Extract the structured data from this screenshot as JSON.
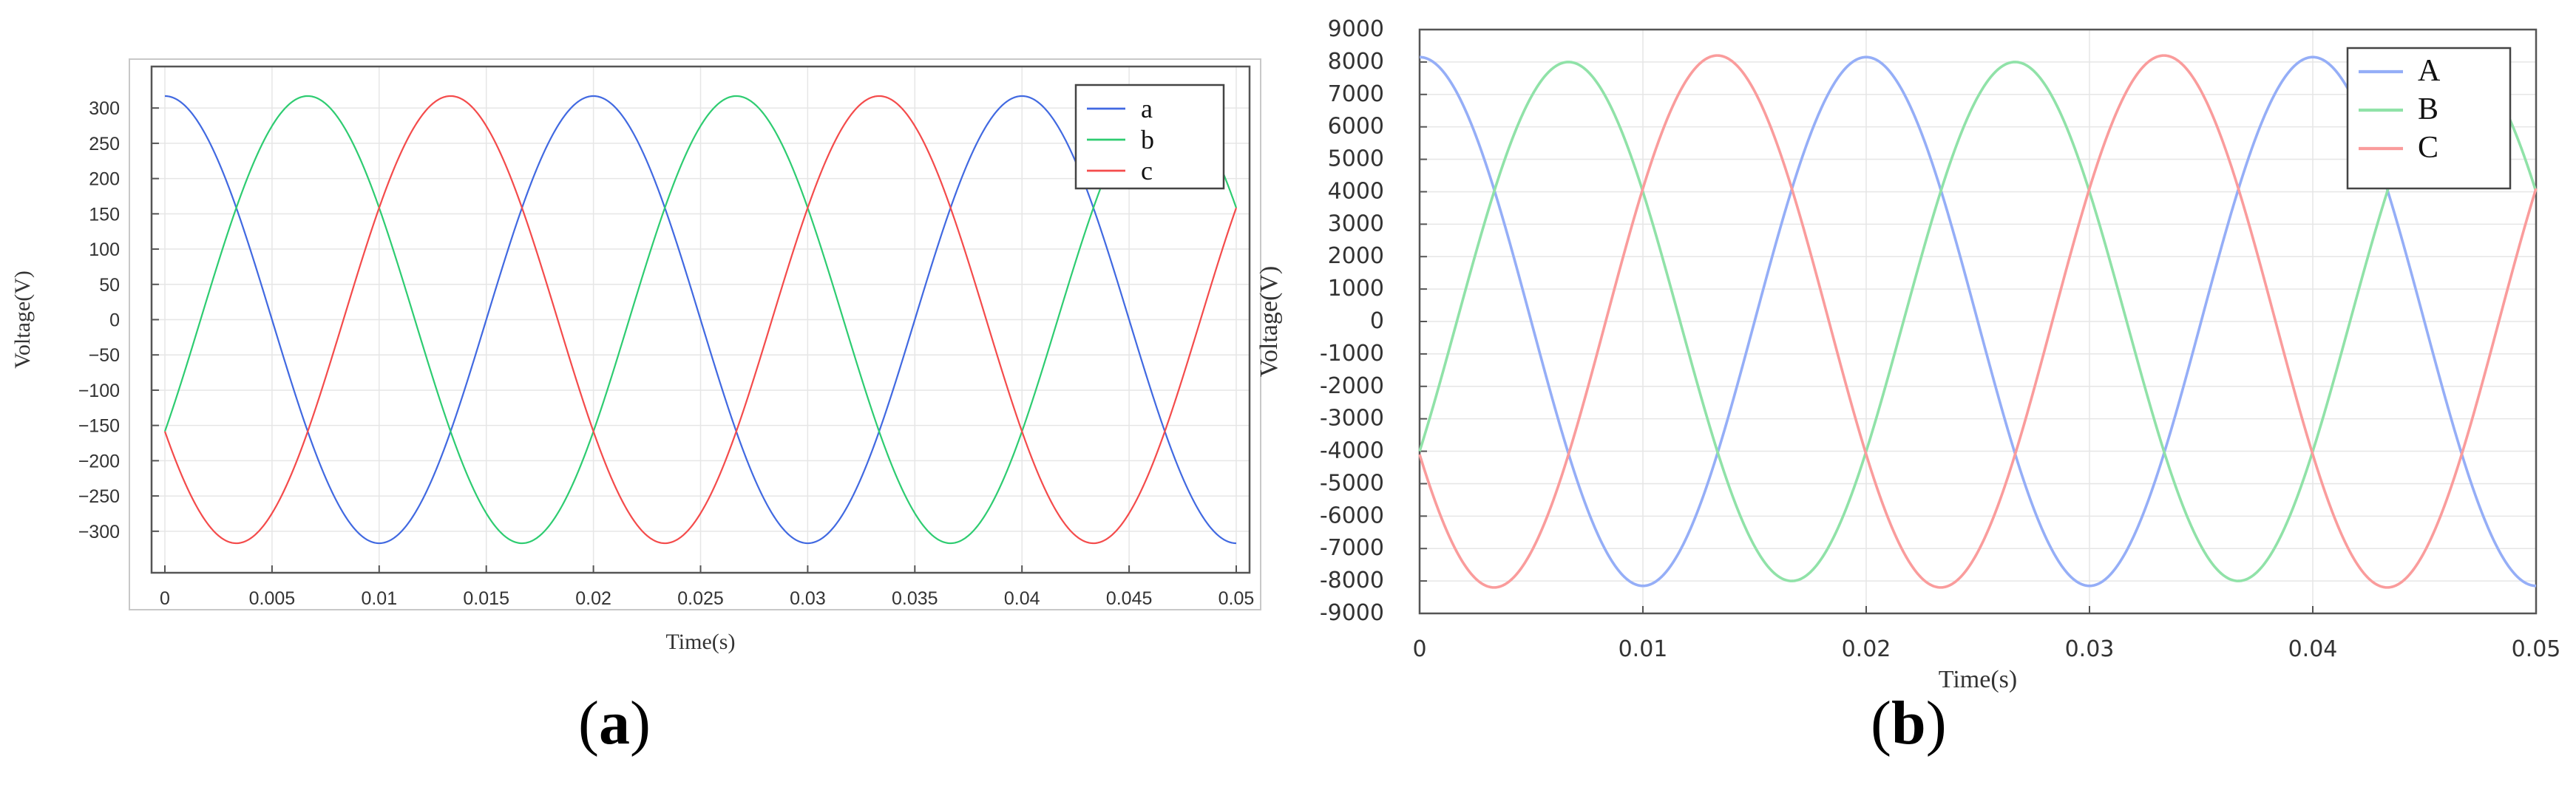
{
  "panels": [
    {
      "open": "(",
      "letter": "a",
      "close": ")"
    },
    {
      "open": "(",
      "letter": "b",
      "close": ")"
    }
  ],
  "chart_data": [
    {
      "type": "line",
      "title": "",
      "xlabel": "Time(s)",
      "ylabel": "Voltage(V)",
      "xlim": [
        0,
        0.05
      ],
      "ylim": [
        -340,
        340
      ],
      "xticks": [
        0,
        0.005,
        0.01,
        0.015,
        0.02,
        0.025,
        0.03,
        0.035,
        0.04,
        0.045,
        0.05
      ],
      "xtick_labels": [
        "0",
        "0.005",
        "0.01",
        "0.015",
        "0.02",
        "0.025",
        "0.03",
        "0.035",
        "0.04",
        "0.045",
        "0.05"
      ],
      "yticks": [
        300,
        250,
        200,
        150,
        100,
        50,
        0,
        -50,
        -100,
        -150,
        -200,
        -250,
        -300
      ],
      "ytick_labels": [
        "300",
        "250",
        "200",
        "150",
        "100",
        "50",
        "0",
        "−50",
        "−100",
        "−150",
        "−200",
        "−250",
        "−300"
      ],
      "grid": true,
      "legend_position": "top-right",
      "frequency_hz": 50,
      "series": [
        {
          "name": "a",
          "color": "#4169e1",
          "amplitude": 317,
          "phase_deg": 0
        },
        {
          "name": "b",
          "color": "#2ecc71",
          "amplitude": 317,
          "phase_deg": -120
        },
        {
          "name": "c",
          "color": "#f44b4b",
          "amplitude": 317,
          "phase_deg": 120
        }
      ]
    },
    {
      "type": "line",
      "title": "",
      "xlabel": "Time(s)",
      "ylabel": "Voltage(V)",
      "xlim": [
        0,
        0.05
      ],
      "ylim": [
        -9000,
        9000
      ],
      "xticks": [
        0,
        0.01,
        0.02,
        0.03,
        0.04,
        0.05
      ],
      "xtick_labels": [
        "0",
        "0.01",
        "0.02",
        "0.03",
        "0.04",
        "0.05"
      ],
      "yticks": [
        9000,
        8000,
        7000,
        6000,
        5000,
        4000,
        3000,
        2000,
        1000,
        0,
        -1000,
        -2000,
        -3000,
        -4000,
        -5000,
        -6000,
        -7000,
        -8000,
        -9000
      ],
      "ytick_labels": [
        "9000",
        "8000",
        "7000",
        "6000",
        "5000",
        "4000",
        "3000",
        "2000",
        "1000",
        "0",
        "-1000",
        "-2000",
        "-3000",
        "-4000",
        "-5000",
        "-6000",
        "-7000",
        "-8000",
        "-9000"
      ],
      "grid": true,
      "legend_position": "top-right",
      "frequency_hz": 50,
      "series": [
        {
          "name": "A",
          "color": "#95aef7",
          "amplitude": 8150,
          "phase_deg": 0
        },
        {
          "name": "B",
          "color": "#90e2a8",
          "amplitude": 8000,
          "phase_deg": -120
        },
        {
          "name": "C",
          "color": "#fa9c9c",
          "amplitude": 8200,
          "phase_deg": 120
        }
      ]
    }
  ]
}
